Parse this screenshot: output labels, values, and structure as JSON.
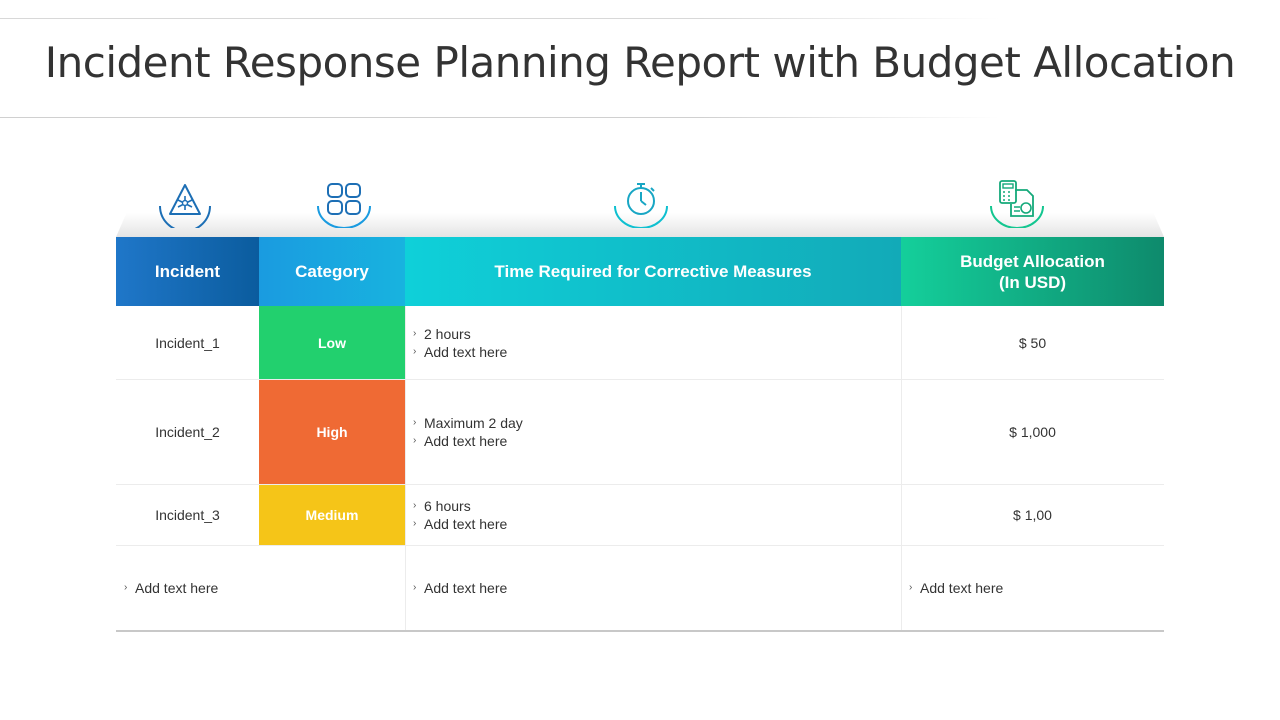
{
  "title": "Incident Response Planning Report with Budget Allocation",
  "colors": {
    "header_incident": "#1f77c9",
    "header_category": "#1a9be0",
    "header_time": "#0fd0d9",
    "header_budget": "#14cf9b",
    "low": "#22d06e",
    "high": "#ef6a34",
    "medium": "#f5c518"
  },
  "icons": [
    "warning-triangle-icon",
    "apps-grid-icon",
    "stopwatch-icon",
    "calculator-invoice-icon"
  ],
  "headers": {
    "incident": "Incident",
    "category": "Category",
    "time": "Time Required for Corrective Measures",
    "budget_line1": "Budget Allocation",
    "budget_line2": "(In USD)"
  },
  "rows": [
    {
      "incident": "Incident_1",
      "category": "Low",
      "time": [
        "2 hours",
        "Add text here"
      ],
      "budget": "$ 50"
    },
    {
      "incident": "Incident_2",
      "category": "High",
      "time": [
        "Maximum 2 day",
        "Add text here"
      ],
      "budget": "$ 1,000"
    },
    {
      "incident": "Incident_3",
      "category": "Medium",
      "time": [
        "6 hours",
        "Add text here"
      ],
      "budget": "$ 1,00"
    }
  ],
  "footer_row": {
    "col1": "Add text here",
    "col2": "Add text here",
    "col3": "Add text here"
  }
}
